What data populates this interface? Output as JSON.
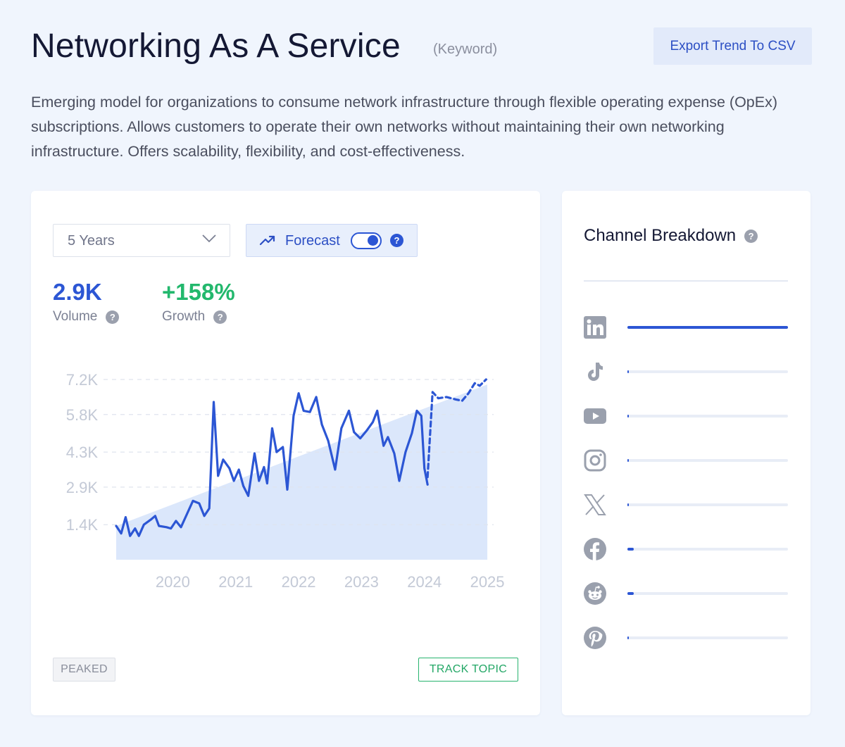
{
  "header": {
    "title": "Networking As A Service",
    "tag": "(Keyword)",
    "export_label": "Export Trend To CSV",
    "description": "Emerging model for organizations to consume network infrastructure through flexible operating expense (OpEx) subscriptions. Allows customers to operate their own networks without maintaining their own networking infrastructure. Offers scalability, flexibility, and cost-effectiveness."
  },
  "controls": {
    "range": "5 Years",
    "forecast_label": "Forecast",
    "forecast_enabled": true
  },
  "metrics": {
    "volume_value": "2.9K",
    "volume_label": "Volume",
    "growth_value": "+158%",
    "growth_label": "Growth"
  },
  "colors": {
    "accent": "#2c56d4",
    "growth": "#23b86d",
    "trend_fill": "#dbe7fb"
  },
  "chart_data": {
    "type": "line",
    "y_tick_labels": [
      "7.2K",
      "5.8K",
      "4.3K",
      "2.9K",
      "1.4K"
    ],
    "y_ticks": [
      7200,
      5800,
      4300,
      2900,
      1400
    ],
    "x_tick_labels": [
      "2020",
      "2021",
      "2022",
      "2023",
      "2024",
      "2025"
    ],
    "x_ticks": [
      2020,
      2021,
      2022,
      2023,
      2024,
      2025
    ],
    "ylim": [
      0,
      7200
    ],
    "xlim": [
      2019.1,
      2025.1
    ],
    "grid": true,
    "series": [
      {
        "style": "solid",
        "values": [
          [
            2019.1,
            1350
          ],
          [
            2019.18,
            1050
          ],
          [
            2019.25,
            1700
          ],
          [
            2019.32,
            950
          ],
          [
            2019.4,
            1250
          ],
          [
            2019.46,
            950
          ],
          [
            2019.54,
            1400
          ],
          [
            2019.65,
            1600
          ],
          [
            2019.72,
            1750
          ],
          [
            2019.78,
            1350
          ],
          [
            2019.9,
            1300
          ],
          [
            2019.97,
            1250
          ],
          [
            2020.05,
            1550
          ],
          [
            2020.13,
            1300
          ],
          [
            2020.22,
            1800
          ],
          [
            2020.32,
            2350
          ],
          [
            2020.42,
            2250
          ],
          [
            2020.5,
            1750
          ],
          [
            2020.58,
            2050
          ],
          [
            2020.65,
            6300
          ],
          [
            2020.72,
            3350
          ],
          [
            2020.8,
            4000
          ],
          [
            2020.9,
            3650
          ],
          [
            2020.97,
            3150
          ],
          [
            2021.05,
            3600
          ],
          [
            2021.12,
            2950
          ],
          [
            2021.2,
            2550
          ],
          [
            2021.3,
            4250
          ],
          [
            2021.37,
            3150
          ],
          [
            2021.45,
            3700
          ],
          [
            2021.5,
            3050
          ],
          [
            2021.58,
            5250
          ],
          [
            2021.65,
            4300
          ],
          [
            2021.75,
            4500
          ],
          [
            2021.82,
            2800
          ],
          [
            2021.92,
            5750
          ],
          [
            2022.0,
            6650
          ],
          [
            2022.08,
            5950
          ],
          [
            2022.18,
            5900
          ],
          [
            2022.28,
            6500
          ],
          [
            2022.37,
            5400
          ],
          [
            2022.47,
            4750
          ],
          [
            2022.58,
            3600
          ],
          [
            2022.68,
            5250
          ],
          [
            2022.8,
            5950
          ],
          [
            2022.88,
            5100
          ],
          [
            2022.98,
            4850
          ],
          [
            2023.08,
            5150
          ],
          [
            2023.18,
            5500
          ],
          [
            2023.25,
            5950
          ],
          [
            2023.35,
            4550
          ],
          [
            2023.42,
            4900
          ],
          [
            2023.52,
            4250
          ],
          [
            2023.6,
            3150
          ],
          [
            2023.7,
            4300
          ],
          [
            2023.8,
            5050
          ],
          [
            2023.88,
            5950
          ],
          [
            2023.95,
            5750
          ],
          [
            2024.0,
            3650
          ],
          [
            2024.05,
            3000
          ]
        ]
      },
      {
        "style": "dotted",
        "values": [
          [
            2024.05,
            3300
          ],
          [
            2024.13,
            6700
          ],
          [
            2024.22,
            6450
          ],
          [
            2024.35,
            6500
          ],
          [
            2024.5,
            6400
          ],
          [
            2024.6,
            6350
          ],
          [
            2024.7,
            6650
          ],
          [
            2024.8,
            7050
          ],
          [
            2024.88,
            6950
          ],
          [
            2024.98,
            7200
          ]
        ]
      }
    ],
    "trend_area": {
      "start": [
        2019.1,
        1350
      ],
      "end": [
        2025.0,
        7000
      ]
    }
  },
  "badges": {
    "peaked": "PEAKED",
    "track": "TRACK TOPIC"
  },
  "channels": {
    "title": "Channel Breakdown",
    "items": [
      {
        "name": "linkedin",
        "icon": "linkedin-icon",
        "share": 1.0
      },
      {
        "name": "tiktok",
        "icon": "tiktok-icon",
        "share": 0.01
      },
      {
        "name": "youtube",
        "icon": "youtube-icon",
        "share": 0.01
      },
      {
        "name": "instagram",
        "icon": "instagram-icon",
        "share": 0.0
      },
      {
        "name": "x",
        "icon": "x-icon",
        "share": 0.01
      },
      {
        "name": "facebook",
        "icon": "facebook-icon",
        "share": 0.04
      },
      {
        "name": "reddit",
        "icon": "reddit-icon",
        "share": 0.04
      },
      {
        "name": "pinterest",
        "icon": "pinterest-icon",
        "share": 0.01
      }
    ]
  }
}
